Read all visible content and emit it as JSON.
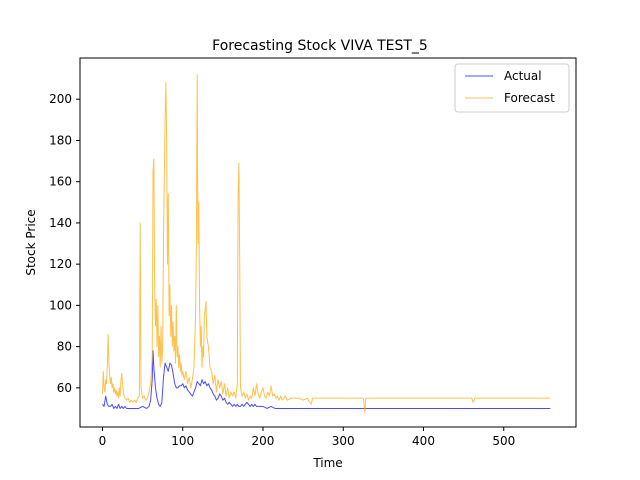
{
  "chart_data": {
    "type": "line",
    "title": "Forecasting Stock VIVA TEST_5",
    "xlabel": "Time",
    "ylabel": "Stock Price",
    "xlim": [
      -28,
      590
    ],
    "ylim": [
      41,
      220
    ],
    "x_ticks": [
      0,
      100,
      200,
      300,
      400,
      500
    ],
    "y_ticks": [
      60,
      80,
      100,
      120,
      140,
      160,
      180,
      200
    ],
    "grid": false,
    "legend_position": "top-right",
    "series": [
      {
        "name": "Actual",
        "color": "#0000ff",
        "points": [
          [
            0,
            52
          ],
          [
            2,
            51
          ],
          [
            4,
            56
          ],
          [
            6,
            52
          ],
          [
            8,
            51
          ],
          [
            10,
            51
          ],
          [
            12,
            52
          ],
          [
            14,
            50
          ],
          [
            16,
            51
          ],
          [
            18,
            50
          ],
          [
            20,
            52
          ],
          [
            22,
            50
          ],
          [
            24,
            51
          ],
          [
            26,
            50
          ],
          [
            28,
            51
          ],
          [
            30,
            50
          ],
          [
            35,
            50
          ],
          [
            40,
            50
          ],
          [
            45,
            50
          ],
          [
            50,
            51
          ],
          [
            55,
            50
          ],
          [
            58,
            51
          ],
          [
            60,
            54
          ],
          [
            62,
            64
          ],
          [
            63,
            78
          ],
          [
            64,
            70
          ],
          [
            66,
            60
          ],
          [
            68,
            55
          ],
          [
            70,
            52
          ],
          [
            72,
            51
          ],
          [
            74,
            53
          ],
          [
            76,
            65
          ],
          [
            78,
            72
          ],
          [
            80,
            70
          ],
          [
            82,
            68
          ],
          [
            84,
            72
          ],
          [
            86,
            71
          ],
          [
            88,
            67
          ],
          [
            90,
            62
          ],
          [
            92,
            60
          ],
          [
            94,
            60
          ],
          [
            96,
            61
          ],
          [
            98,
            61
          ],
          [
            100,
            62
          ],
          [
            102,
            60
          ],
          [
            104,
            61
          ],
          [
            106,
            59
          ],
          [
            108,
            58
          ],
          [
            110,
            57
          ],
          [
            112,
            56
          ],
          [
            114,
            58
          ],
          [
            116,
            60
          ],
          [
            118,
            63
          ],
          [
            120,
            62
          ],
          [
            122,
            61
          ],
          [
            124,
            64
          ],
          [
            126,
            62
          ],
          [
            128,
            63
          ],
          [
            130,
            61
          ],
          [
            132,
            62
          ],
          [
            134,
            60
          ],
          [
            136,
            59
          ],
          [
            138,
            57
          ],
          [
            140,
            56
          ],
          [
            142,
            54
          ],
          [
            144,
            55
          ],
          [
            146,
            57
          ],
          [
            148,
            56
          ],
          [
            150,
            54
          ],
          [
            152,
            55
          ],
          [
            154,
            53
          ],
          [
            156,
            52
          ],
          [
            158,
            53
          ],
          [
            160,
            52
          ],
          [
            162,
            51
          ],
          [
            164,
            52
          ],
          [
            166,
            51
          ],
          [
            168,
            52
          ],
          [
            170,
            51
          ],
          [
            172,
            51
          ],
          [
            174,
            52
          ],
          [
            176,
            51
          ],
          [
            178,
            52
          ],
          [
            180,
            53
          ],
          [
            182,
            52
          ],
          [
            184,
            51
          ],
          [
            186,
            52
          ],
          [
            188,
            51
          ],
          [
            190,
            52
          ],
          [
            192,
            51
          ],
          [
            195,
            51
          ],
          [
            200,
            51
          ],
          [
            205,
            50
          ],
          [
            210,
            51
          ],
          [
            215,
            50
          ],
          [
            220,
            50
          ],
          [
            230,
            50
          ],
          [
            250,
            50
          ],
          [
            300,
            50
          ],
          [
            350,
            50
          ],
          [
            400,
            50
          ],
          [
            450,
            50
          ],
          [
            500,
            50
          ],
          [
            558,
            50
          ]
        ]
      },
      {
        "name": "Forecast",
        "color": "#ffa500",
        "points": [
          [
            0,
            57
          ],
          [
            1,
            68
          ],
          [
            2,
            60
          ],
          [
            3,
            58
          ],
          [
            4,
            64
          ],
          [
            5,
            62
          ],
          [
            6,
            70
          ],
          [
            7,
            86
          ],
          [
            8,
            72
          ],
          [
            9,
            66
          ],
          [
            10,
            62
          ],
          [
            11,
            65
          ],
          [
            12,
            60
          ],
          [
            13,
            62
          ],
          [
            14,
            58
          ],
          [
            15,
            60
          ],
          [
            16,
            57
          ],
          [
            17,
            59
          ],
          [
            18,
            56
          ],
          [
            19,
            58
          ],
          [
            20,
            55
          ],
          [
            21,
            60
          ],
          [
            22,
            56
          ],
          [
            23,
            64
          ],
          [
            24,
            67
          ],
          [
            25,
            62
          ],
          [
            26,
            58
          ],
          [
            27,
            56
          ],
          [
            28,
            55
          ],
          [
            30,
            54
          ],
          [
            32,
            55
          ],
          [
            34,
            53
          ],
          [
            36,
            54
          ],
          [
            38,
            53
          ],
          [
            40,
            54
          ],
          [
            42,
            53
          ],
          [
            44,
            55
          ],
          [
            46,
            56
          ],
          [
            47,
            140
          ],
          [
            48,
            60
          ],
          [
            50,
            55
          ],
          [
            52,
            56
          ],
          [
            54,
            54
          ],
          [
            56,
            55
          ],
          [
            58,
            58
          ],
          [
            60,
            62
          ],
          [
            62,
            75
          ],
          [
            63,
            165
          ],
          [
            64,
            171
          ],
          [
            65,
            110
          ],
          [
            66,
            90
          ],
          [
            67,
            103
          ],
          [
            68,
            80
          ],
          [
            69,
            100
          ],
          [
            70,
            75
          ],
          [
            71,
            85
          ],
          [
            72,
            70
          ],
          [
            73,
            90
          ],
          [
            74,
            72
          ],
          [
            75,
            80
          ],
          [
            76,
            130
          ],
          [
            77,
            160
          ],
          [
            78,
            190
          ],
          [
            79,
            208
          ],
          [
            80,
            180
          ],
          [
            81,
            120
          ],
          [
            82,
            154
          ],
          [
            83,
            95
          ],
          [
            84,
            110
          ],
          [
            85,
            85
          ],
          [
            86,
            100
          ],
          [
            87,
            80
          ],
          [
            88,
            92
          ],
          [
            89,
            78
          ],
          [
            90,
            85
          ],
          [
            91,
            72
          ],
          [
            92,
            100
          ],
          [
            93,
            75
          ],
          [
            94,
            80
          ],
          [
            95,
            70
          ],
          [
            96,
            76
          ],
          [
            97,
            68
          ],
          [
            98,
            72
          ],
          [
            99,
            66
          ],
          [
            100,
            68
          ],
          [
            102,
            64
          ],
          [
            104,
            68
          ],
          [
            106,
            62
          ],
          [
            108,
            65
          ],
          [
            110,
            60
          ],
          [
            112,
            64
          ],
          [
            114,
            70
          ],
          [
            116,
            95
          ],
          [
            117,
            130
          ],
          [
            118,
            212
          ],
          [
            119,
            130
          ],
          [
            120,
            150
          ],
          [
            121,
            100
          ],
          [
            122,
            80
          ],
          [
            123,
            90
          ],
          [
            124,
            70
          ],
          [
            125,
            80
          ],
          [
            126,
            75
          ],
          [
            127,
            95
          ],
          [
            128,
            98
          ],
          [
            129,
            102
          ],
          [
            130,
            85
          ],
          [
            132,
            80
          ],
          [
            134,
            70
          ],
          [
            136,
            68
          ],
          [
            138,
            62
          ],
          [
            140,
            66
          ],
          [
            142,
            58
          ],
          [
            144,
            64
          ],
          [
            146,
            60
          ],
          [
            148,
            63
          ],
          [
            150,
            57
          ],
          [
            152,
            62
          ],
          [
            154,
            56
          ],
          [
            156,
            60
          ],
          [
            158,
            55
          ],
          [
            160,
            58
          ],
          [
            162,
            56
          ],
          [
            164,
            58
          ],
          [
            166,
            55
          ],
          [
            168,
            62
          ],
          [
            169,
            155
          ],
          [
            170,
            169
          ],
          [
            171,
            120
          ],
          [
            172,
            60
          ],
          [
            174,
            56
          ],
          [
            176,
            58
          ],
          [
            178,
            55
          ],
          [
            180,
            57
          ],
          [
            182,
            54
          ],
          [
            184,
            56
          ],
          [
            186,
            55
          ],
          [
            188,
            60
          ],
          [
            190,
            56
          ],
          [
            192,
            62
          ],
          [
            194,
            57
          ],
          [
            196,
            55
          ],
          [
            198,
            58
          ],
          [
            200,
            60
          ],
          [
            202,
            56
          ],
          [
            204,
            55
          ],
          [
            206,
            58
          ],
          [
            208,
            56
          ],
          [
            210,
            61
          ],
          [
            212,
            56
          ],
          [
            214,
            57
          ],
          [
            216,
            55
          ],
          [
            218,
            56
          ],
          [
            220,
            54
          ],
          [
            222,
            56
          ],
          [
            224,
            54
          ],
          [
            226,
            55
          ],
          [
            228,
            56
          ],
          [
            230,
            54
          ],
          [
            235,
            55
          ],
          [
            240,
            55
          ],
          [
            245,
            55
          ],
          [
            250,
            54
          ],
          [
            255,
            55
          ],
          [
            260,
            52
          ],
          [
            262,
            55
          ],
          [
            270,
            55
          ],
          [
            280,
            55
          ],
          [
            290,
            55
          ],
          [
            300,
            55
          ],
          [
            310,
            55
          ],
          [
            320,
            55
          ],
          [
            325,
            55
          ],
          [
            327,
            48
          ],
          [
            328,
            55
          ],
          [
            330,
            55
          ],
          [
            340,
            55
          ],
          [
            360,
            55
          ],
          [
            380,
            55
          ],
          [
            400,
            55
          ],
          [
            420,
            55
          ],
          [
            440,
            55
          ],
          [
            460,
            55
          ],
          [
            462,
            53
          ],
          [
            464,
            55
          ],
          [
            480,
            55
          ],
          [
            500,
            55
          ],
          [
            520,
            55
          ],
          [
            540,
            55
          ],
          [
            558,
            55
          ]
        ]
      }
    ]
  }
}
